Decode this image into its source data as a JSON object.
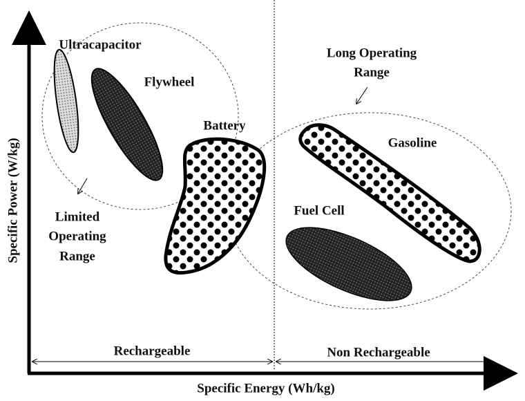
{
  "axes": {
    "y_label": "Specific Power (W/kg)",
    "x_label": "Specific Energy (Wh/kg)"
  },
  "zones": {
    "rechargeable": "Rechargeable",
    "non_rechargeable": "Non Rechargeable"
  },
  "technologies": {
    "ultracapacitor": "Ultracapacitor",
    "flywheel": "Flywheel",
    "battery": "Battery",
    "gasoline": "Gasoline",
    "fuel_cell": "Fuel Cell"
  },
  "annotations": {
    "limited_range": [
      "Limited",
      "Operating",
      "Range"
    ],
    "long_range": [
      "Long Operating",
      "Range"
    ]
  }
}
